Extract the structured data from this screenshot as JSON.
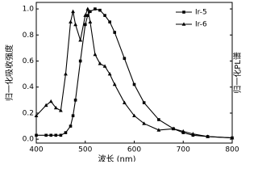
{
  "chart_data": {
    "type": "line",
    "x_label": "波长 (nm)",
    "y_label": "归一化吸收强度",
    "y2_label": "归一化PL谱",
    "x": [
      400,
      420,
      430,
      440,
      450,
      460,
      470,
      475,
      480,
      490,
      500,
      505,
      510,
      520,
      530,
      540,
      550,
      560,
      580,
      600,
      620,
      650,
      680,
      700,
      720,
      750,
      800
    ],
    "series": [
      {
        "name": "Ir-5",
        "color": "#000000",
        "marker": "square",
        "values": [
          0.03,
          0.03,
          0.03,
          0.03,
          0.03,
          0.05,
          0.1,
          0.18,
          0.3,
          0.6,
          0.88,
          0.95,
          0.98,
          1.0,
          0.99,
          0.95,
          0.9,
          0.82,
          0.62,
          0.42,
          0.28,
          0.15,
          0.08,
          0.05,
          0.03,
          0.02,
          0.01
        ]
      },
      {
        "name": "Ir-6",
        "color": "#000000",
        "marker": "triangle",
        "values": [
          0.18,
          0.26,
          0.29,
          0.24,
          0.22,
          0.5,
          0.9,
          0.98,
          0.88,
          0.76,
          0.95,
          1.0,
          0.9,
          0.65,
          0.58,
          0.56,
          0.5,
          0.42,
          0.28,
          0.18,
          0.12,
          0.07,
          0.08,
          0.06,
          0.04,
          0.02,
          0.01
        ]
      }
    ],
    "xlim": [
      400,
      800
    ],
    "xticks": [
      400,
      500,
      600,
      700,
      800
    ],
    "ylim": [
      -0.03,
      1.05
    ],
    "yticks": [
      {
        "value": 0,
        "label": "0.0"
      },
      0.2,
      0.4,
      0.6,
      0.8,
      {
        "value": 1,
        "label": "1.0"
      }
    ],
    "legend": "upper right"
  }
}
